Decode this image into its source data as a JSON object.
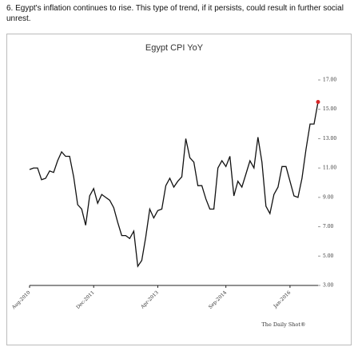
{
  "caption": "6. Egypt's inflation continues to rise. This type of trend, if it persists, could result in further social unrest.",
  "chart_data": {
    "type": "line",
    "title": "Egypt CPI YoY",
    "source": "The Daily Shot®",
    "categories": [
      "Aug-2010",
      null,
      null,
      null,
      null,
      null,
      null,
      null,
      null,
      null,
      null,
      null,
      null,
      null,
      null,
      null,
      "Dec-2011",
      null,
      null,
      null,
      null,
      null,
      null,
      null,
      null,
      null,
      null,
      null,
      null,
      null,
      null,
      null,
      "Apr-2013",
      null,
      null,
      null,
      null,
      null,
      null,
      null,
      null,
      null,
      null,
      null,
      null,
      null,
      null,
      null,
      null,
      "Sep-2014",
      null,
      null,
      null,
      null,
      null,
      null,
      null,
      null,
      null,
      null,
      null,
      null,
      null,
      null,
      null,
      "Jan-2016",
      null,
      null,
      null,
      null,
      null,
      null,
      null
    ],
    "series": [
      {
        "name": "Egypt CPI YoY",
        "color": "#111111",
        "last_point_color": "#d62728",
        "values": [
          10.9,
          11.0,
          11.0,
          10.2,
          10.3,
          10.8,
          10.7,
          11.5,
          12.1,
          11.8,
          11.8,
          10.4,
          8.5,
          8.2,
          7.1,
          9.1,
          9.6,
          8.6,
          9.2,
          9.0,
          8.8,
          8.3,
          7.3,
          6.4,
          6.4,
          6.2,
          6.7,
          4.3,
          4.7,
          6.3,
          8.2,
          7.6,
          8.1,
          8.2,
          9.8,
          10.3,
          9.7,
          10.1,
          10.4,
          13.0,
          11.7,
          11.4,
          9.8,
          9.8,
          8.9,
          8.2,
          8.2,
          11.0,
          11.5,
          11.1,
          11.8,
          9.1,
          10.1,
          9.7,
          10.6,
          11.5,
          11.0,
          13.1,
          11.4,
          8.4,
          7.9,
          9.2,
          9.7,
          11.1,
          11.1,
          10.1,
          9.1,
          9.0,
          10.3,
          12.3,
          14.0,
          14.0,
          15.5
        ]
      }
    ],
    "ylim": [
      3,
      17
    ],
    "yticks": [
      {
        "value": 3,
        "label": "3.00"
      },
      {
        "value": 5,
        "label": "5.00"
      },
      {
        "value": 7,
        "label": "7.00"
      },
      {
        "value": 9,
        "label": "9.00"
      },
      {
        "value": 11,
        "label": "11.00"
      },
      {
        "value": 13,
        "label": "13.00"
      },
      {
        "value": 15,
        "label": "15.00"
      },
      {
        "value": 17,
        "label": "17.00"
      }
    ],
    "grid": false
  }
}
